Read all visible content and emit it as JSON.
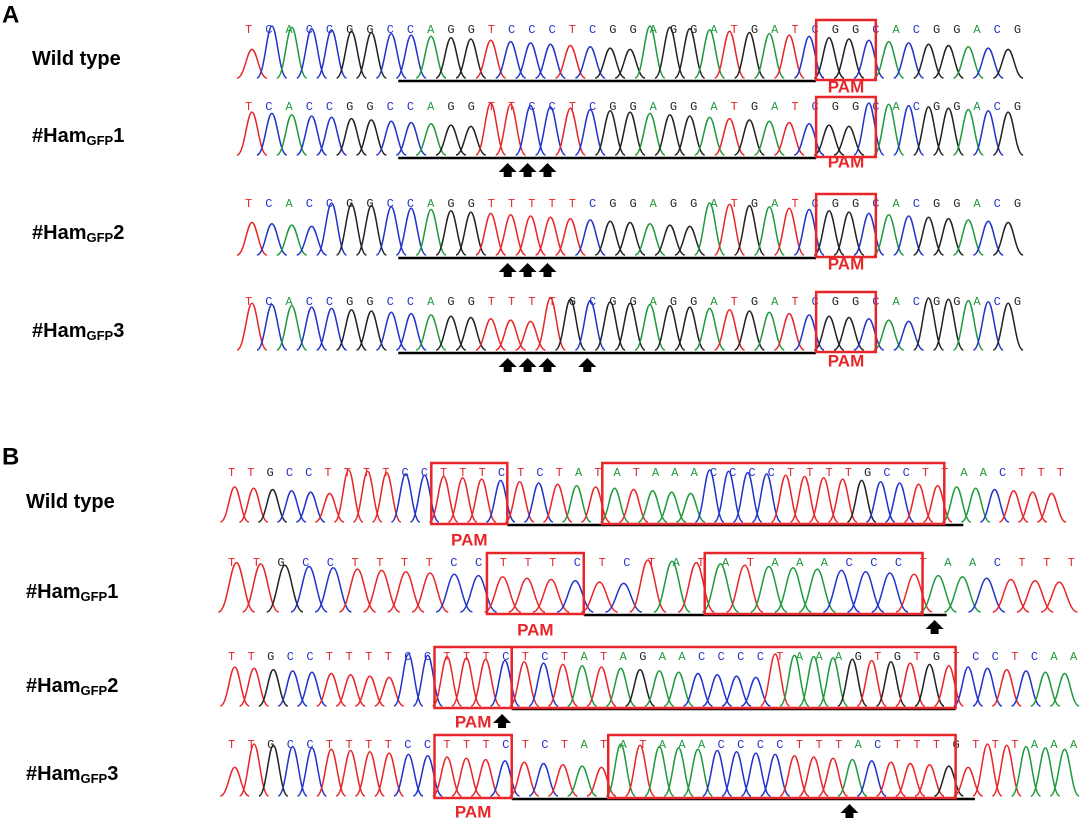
{
  "panels": [
    {
      "label": "A",
      "rows": [
        {
          "name": {
            "prefix": "Wild type"
          },
          "sequence": "TCACCGGCCAGGTCCCTCGGAGGATGATCGGCACGGACG",
          "pam": "PAM"
        },
        {
          "name": {
            "prefix": "#Ham",
            "subscript": "GFP",
            "suffix": "1"
          },
          "sequence": "TCACCGGCCAGGTTCCTCGGAGGATGATCGGCACGGACG",
          "pam": "PAM"
        },
        {
          "name": {
            "prefix": "#Ham",
            "subscript": "GFP",
            "suffix": "2"
          },
          "sequence": "TCACCGGCCAGGTTTTTCGGAGGATGATCGGCACGGACG",
          "pam": "PAM"
        },
        {
          "name": {
            "prefix": "#Ham",
            "subscript": "GFP",
            "suffix": "3"
          },
          "sequence": "TCACCGGCCAGGTTTTGCGGAGGATGATCGGCACGGACG",
          "pam": "PAM"
        }
      ]
    },
    {
      "label": "B",
      "rows": [
        {
          "name": {
            "prefix": "Wild type"
          },
          "sequence": "TTGCCTTTTCCTTTCTCTATATAAACCCCTTTTGCCTTAACTTT",
          "pam": "PAM"
        },
        {
          "name": {
            "prefix": "#Ham",
            "subscript": "GFP",
            "suffix": "1"
          },
          "sequence": "TTGCCTTTTCCTTTCTCTATATAAACCCTAACTTT",
          "pam": "PAM"
        },
        {
          "name": {
            "prefix": "#Ham",
            "subscript": "GFP",
            "suffix": "2"
          },
          "sequence": "TTGCCTTTTCCTTTCTCTATAGAACCCCTAAAGTGTGTCCTCAA",
          "pam": "PAM"
        },
        {
          "name": {
            "prefix": "#Ham",
            "subscript": "GFP",
            "suffix": "3"
          },
          "sequence": "TTGCCTTTTCCTTTCTCTATATAAACCCCTTTACTTTGTTTAAA",
          "pam": "PAM"
        }
      ]
    }
  ]
}
